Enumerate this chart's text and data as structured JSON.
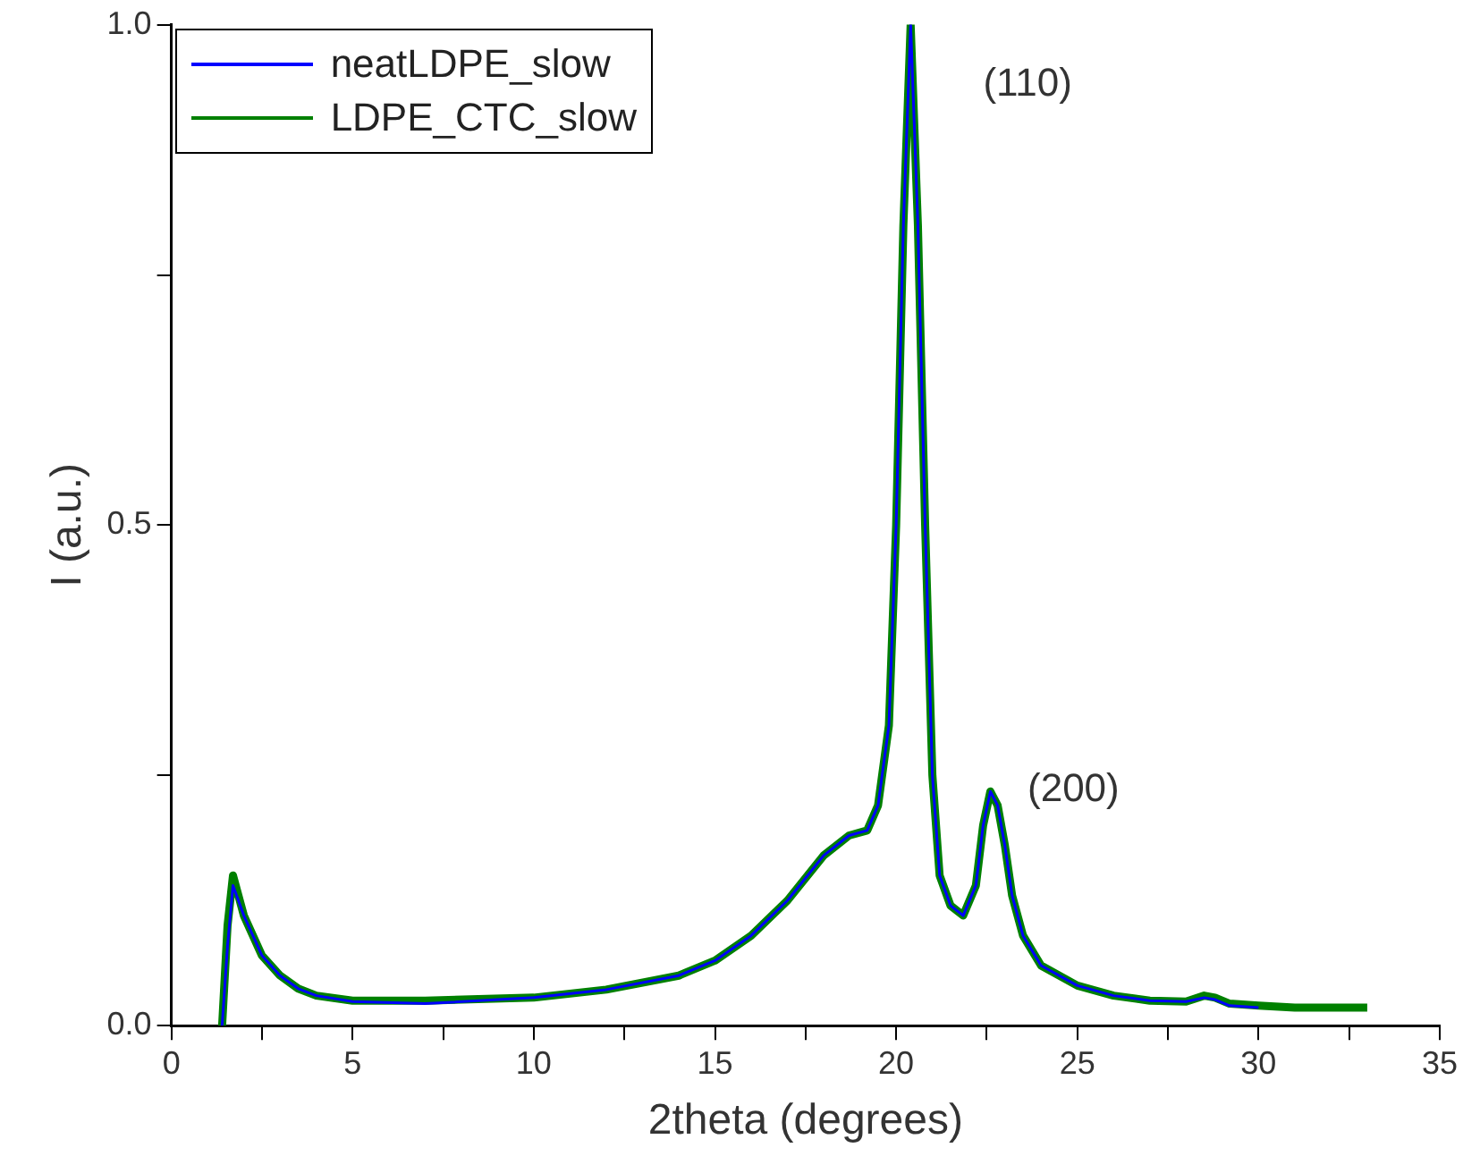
{
  "chart_data": {
    "type": "line",
    "xlabel": "2theta (degrees)",
    "ylabel": "I (a.u.)",
    "xlim": [
      0,
      35
    ],
    "xticks": [
      0,
      {
        "value": 2.5,
        "label": null
      },
      5,
      {
        "value": 7.5,
        "label": null
      },
      10,
      {
        "value": 12.5,
        "label": null
      },
      15,
      {
        "value": 17.5,
        "label": null
      },
      20,
      {
        "value": 22.5,
        "label": null
      },
      25,
      {
        "value": 27.5,
        "label": null
      },
      30,
      {
        "value": 32.5,
        "label": null
      },
      35
    ],
    "ylim": [
      0,
      1
    ],
    "yticks": [
      {
        "value": 0,
        "label": "0.0"
      },
      {
        "value": 0.25,
        "label": null
      },
      {
        "value": 0.5,
        "label": "0.5"
      },
      {
        "value": 0.75,
        "label": null
      },
      {
        "value": 1,
        "label": "1.0"
      }
    ],
    "grid": false,
    "legend": "top left",
    "marker": "none",
    "line_style": "solid",
    "annotations": [
      "(110)",
      "(200)"
    ],
    "series": [
      {
        "name": "neatLDPE_slow",
        "color": "#0000ff",
        "x": [
          1.4,
          1.55,
          1.7,
          2.0,
          2.5,
          3,
          3.5,
          4,
          5,
          7,
          10,
          12,
          14,
          15,
          16,
          17,
          18,
          18.7,
          19.2,
          19.5,
          19.8,
          20.0,
          20.2,
          20.4,
          20.6,
          20.8,
          21.0,
          21.2,
          21.5,
          21.85,
          22.2,
          22.4,
          22.6,
          22.8,
          23.0,
          23.2,
          23.5,
          24,
          25,
          26,
          27,
          28,
          28.5,
          28.8,
          29.2,
          30
        ],
        "values": [
          0,
          0.08,
          0.14,
          0.11,
          0.07,
          0.05,
          0.037,
          0.03,
          0.024,
          0.022,
          0.028,
          0.036,
          0.05,
          0.065,
          0.09,
          0.125,
          0.17,
          0.19,
          0.195,
          0.22,
          0.3,
          0.5,
          0.8,
          1.0,
          0.8,
          0.5,
          0.25,
          0.15,
          0.12,
          0.11,
          0.14,
          0.2,
          0.234,
          0.22,
          0.18,
          0.13,
          0.09,
          0.06,
          0.04,
          0.03,
          0.025,
          0.024,
          0.028,
          0.026,
          0.02,
          0.018
        ]
      },
      {
        "name": "LDPE_CTC_slow",
        "color": "#008000",
        "x": [
          1.4,
          1.55,
          1.7,
          2.0,
          2.5,
          3,
          3.5,
          4,
          5,
          7,
          10,
          12,
          14,
          15,
          16,
          17,
          18,
          18.7,
          19.2,
          19.5,
          19.8,
          20.0,
          20.2,
          20.4,
          20.6,
          20.8,
          21.0,
          21.2,
          21.5,
          21.85,
          22.2,
          22.4,
          22.6,
          22.8,
          23.0,
          23.2,
          23.5,
          24,
          25,
          26,
          27,
          28,
          28.5,
          28.8,
          29.2,
          30,
          31,
          33
        ],
        "values": [
          0,
          0.1,
          0.15,
          0.11,
          0.07,
          0.05,
          0.037,
          0.03,
          0.025,
          0.025,
          0.028,
          0.036,
          0.05,
          0.065,
          0.09,
          0.125,
          0.17,
          0.19,
          0.195,
          0.22,
          0.3,
          0.5,
          0.8,
          1.0,
          0.8,
          0.5,
          0.25,
          0.15,
          0.12,
          0.11,
          0.14,
          0.2,
          0.234,
          0.22,
          0.18,
          0.13,
          0.09,
          0.06,
          0.04,
          0.03,
          0.025,
          0.024,
          0.03,
          0.028,
          0.022,
          0.02,
          0.018,
          0.018
        ]
      }
    ]
  }
}
